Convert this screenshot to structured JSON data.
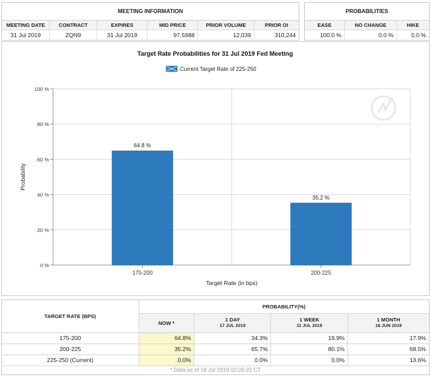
{
  "meeting_info": {
    "title": "MEETING INFORMATION",
    "headers": [
      "MEETING DATE",
      "CONTRACT",
      "EXPIRES",
      "MID PRICE",
      "PRIOR VOLUME",
      "PRIOR OI"
    ],
    "values": [
      "31 Jul 2019",
      "ZQN9",
      "31 Jul 2019",
      "97.5988",
      "12,039",
      "310,244"
    ]
  },
  "probabilities": {
    "title": "PROBABILITIES",
    "headers": [
      "EASE",
      "NO CHANGE",
      "HIKE"
    ],
    "values": [
      "100.0 %",
      "0.0 %",
      "0.0 %"
    ]
  },
  "chart_data": {
    "type": "bar",
    "title": "Target Rate Probabilities for 31 Jul 2019 Fed Meeting",
    "legend": "Current Target Rate of 225-250",
    "legend_position": "top-center",
    "categories": [
      "175-200",
      "200-225"
    ],
    "values": [
      64.8,
      35.2
    ],
    "data_labels": [
      "64.8 %",
      "35.2 %"
    ],
    "xlabel": "Target Rate (in bps)",
    "ylabel": "Probability",
    "ylim": [
      0,
      100
    ],
    "yticks": [
      0,
      20,
      40,
      60,
      80,
      100
    ],
    "ytick_labels": [
      "0 %",
      "20 %",
      "40 %",
      "60 %",
      "80 %",
      "100 %"
    ],
    "grid": true,
    "bar_color": "#2d7bbd"
  },
  "bottom_table": {
    "rate_header": "TARGET RATE (BPS)",
    "prob_header": "PROBABILITY(%)",
    "columns": [
      {
        "label": "NOW *",
        "date": ""
      },
      {
        "label": "1 DAY",
        "date": "17 JUL 2019"
      },
      {
        "label": "1 WEEK",
        "date": "11 JUL 2019"
      },
      {
        "label": "1 MONTH",
        "date": "18 JUN 2019"
      }
    ],
    "rows": [
      {
        "rate": "175-200",
        "values": [
          "64.8%",
          "34.3%",
          "19.9%",
          "17.9%"
        ]
      },
      {
        "rate": "200-225",
        "values": [
          "35.2%",
          "65.7%",
          "80.1%",
          "68.5%"
        ]
      },
      {
        "rate": "225-250 (Current)",
        "values": [
          "0.0%",
          "0.0%",
          "0.0%",
          "13.6%"
        ]
      }
    ],
    "footnote": "* Data as of 18 Jul 2019 02:09:20 CT"
  },
  "colors": {
    "now_highlight": "#fbf8c9",
    "header_bg": "#f3f3f3"
  }
}
